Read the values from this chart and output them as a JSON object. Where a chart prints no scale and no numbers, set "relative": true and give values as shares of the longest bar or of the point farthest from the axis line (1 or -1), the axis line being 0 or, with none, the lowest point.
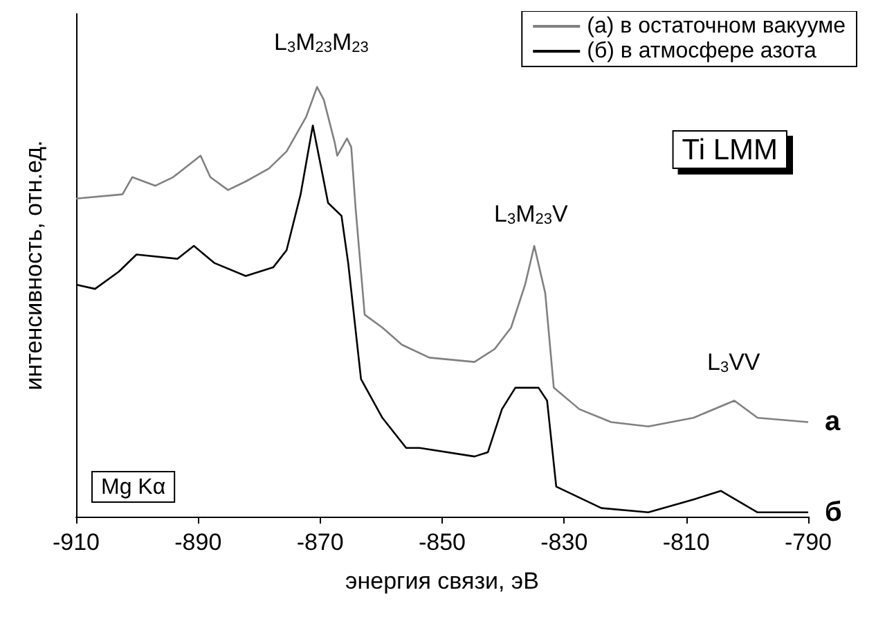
{
  "chart_data": {
    "type": "line",
    "relative": true,
    "xlabel": "энергия связи, эВ",
    "ylabel": "интенсивность, отн.ед.",
    "xlim": [
      -910,
      -790
    ],
    "xticks": [
      -910,
      -890,
      -870,
      -850,
      -830,
      -810,
      -790
    ],
    "legend": "top right",
    "marker": "none",
    "line_style": "solid",
    "grid": false,
    "series": [
      {
        "name": "(а) в остаточном вакууме",
        "color": "#808080",
        "x": [
          -910,
          -902.4,
          -900.8,
          -897,
          -894.1,
          -889.6,
          -888,
          -885.1,
          -882.2,
          -878.4,
          -875.5,
          -872.3,
          -870.5,
          -869.4,
          -867.6,
          -867.2,
          -865.6,
          -864.9,
          -864.2,
          -862.7,
          -859.8,
          -856.6,
          -852.1,
          -844.7,
          -841.4,
          -838.7,
          -836.4,
          -834.9,
          -833.1,
          -831.7,
          -827.5,
          -822.3,
          -816.2,
          -808.8,
          -802.1,
          -798.3,
          -790
        ],
        "values": [
          0.74,
          0.75,
          0.79,
          0.77,
          0.79,
          0.84,
          0.79,
          0.76,
          0.78,
          0.81,
          0.85,
          0.93,
          1,
          0.97,
          0.87,
          0.84,
          0.88,
          0.86,
          0.72,
          0.47,
          0.44,
          0.4,
          0.37,
          0.36,
          0.39,
          0.44,
          0.54,
          0.63,
          0.52,
          0.3,
          0.25,
          0.22,
          0.21,
          0.23,
          0.27,
          0.23,
          0.22
        ]
      },
      {
        "name": "(б) в атмосфере азота",
        "color": "#000000",
        "x": [
          -910,
          -906.9,
          -903,
          -900.1,
          -893.4,
          -890.7,
          -887.3,
          -882.2,
          -877.7,
          -875.5,
          -873.2,
          -871.2,
          -869.8,
          -868.7,
          -866.5,
          -865.4,
          -863.3,
          -859.8,
          -855.9,
          -853.7,
          -844.7,
          -842.5,
          -840.2,
          -838,
          -834.2,
          -832.8,
          -831.3,
          -823.9,
          -816.2,
          -808.8,
          -804.3,
          -798.3,
          -790
        ],
        "values": [
          0.54,
          0.53,
          0.57,
          0.61,
          0.6,
          0.63,
          0.59,
          0.56,
          0.58,
          0.62,
          0.75,
          0.91,
          0.81,
          0.73,
          0.7,
          0.59,
          0.32,
          0.23,
          0.16,
          0.16,
          0.14,
          0.15,
          0.25,
          0.3,
          0.3,
          0.27,
          0.07,
          0.02,
          0.01,
          0.04,
          0.06,
          0.01,
          0.01
        ]
      }
    ],
    "annotations": [
      "L$_{3}$M$_{23}$M$_{23}$",
      "L$_{3}$M$_{23}$V",
      "L$_{3}$VV",
      {
        "text": "а",
        "x": -790,
        "y": 0.22
      },
      {
        "text": "б",
        "x": -790,
        "y": 0.01
      },
      "Ti LMM",
      "Mg Kα"
    ]
  }
}
